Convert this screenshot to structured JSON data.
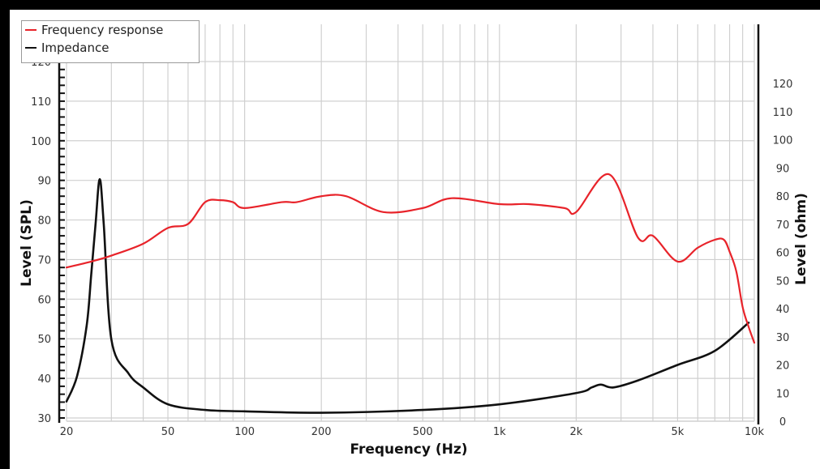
{
  "chart_data": {
    "type": "line",
    "title": "",
    "xlabel": "Frequency (Hz)",
    "ylabel": "Level (SPL)",
    "y2label": "Level (ohm)",
    "xscale": "log",
    "xlim": [
      20,
      10000
    ],
    "ylim": [
      30,
      120
    ],
    "y2lim": [
      0,
      120
    ],
    "grid": true,
    "legend_position": "top-left",
    "x_tick_labels": [
      "20",
      "50",
      "100",
      "200",
      "500",
      "1k",
      "2k",
      "5k",
      "10k"
    ],
    "y_tick_labels": [
      "30",
      "40",
      "50",
      "60",
      "70",
      "80",
      "90",
      "100",
      "110",
      "120"
    ],
    "y2_tick_labels": [
      "0",
      "10",
      "20",
      "30",
      "40",
      "50",
      "60",
      "70",
      "80",
      "90",
      "100",
      "110",
      "120"
    ],
    "series": [
      {
        "name": "Frequency response",
        "color": "#e8232a",
        "axis": "left",
        "x": [
          20,
          25,
          30,
          40,
          50,
          60,
          70,
          80,
          90,
          100,
          140,
          160,
          200,
          250,
          350,
          500,
          650,
          1000,
          1300,
          1800,
          2000,
          2700,
          3500,
          4000,
          5000,
          6000,
          7000,
          7600,
          8000,
          8500,
          9000,
          9500,
          10000
        ],
        "values": [
          68,
          69.5,
          71,
          74,
          78,
          79,
          84.5,
          85,
          84.5,
          83,
          84.5,
          84.5,
          86,
          86,
          82,
          83,
          85.5,
          84,
          84,
          83,
          82,
          91.5,
          75.5,
          76,
          69.5,
          73,
          75,
          75,
          72,
          67,
          58,
          53,
          49
        ]
      },
      {
        "name": "Impedance",
        "color": "#111111",
        "axis": "right",
        "x": [
          20,
          22,
          24,
          25,
          26,
          27,
          28,
          30,
          35,
          40,
          50,
          70,
          100,
          200,
          500,
          1000,
          2000,
          2300,
          2500,
          2800,
          3500,
          5000,
          7000,
          9500
        ],
        "values": [
          7,
          16,
          34,
          52,
          70,
          86,
          70,
          29,
          17,
          12,
          6,
          4,
          3.5,
          3,
          4,
          6,
          10,
          12,
          13,
          12,
          14.5,
          20,
          25,
          35
        ]
      }
    ]
  },
  "legend": {
    "items": [
      {
        "label": "Frequency response",
        "color": "#e8232a"
      },
      {
        "label": "Impedance",
        "color": "#111111"
      }
    ]
  }
}
